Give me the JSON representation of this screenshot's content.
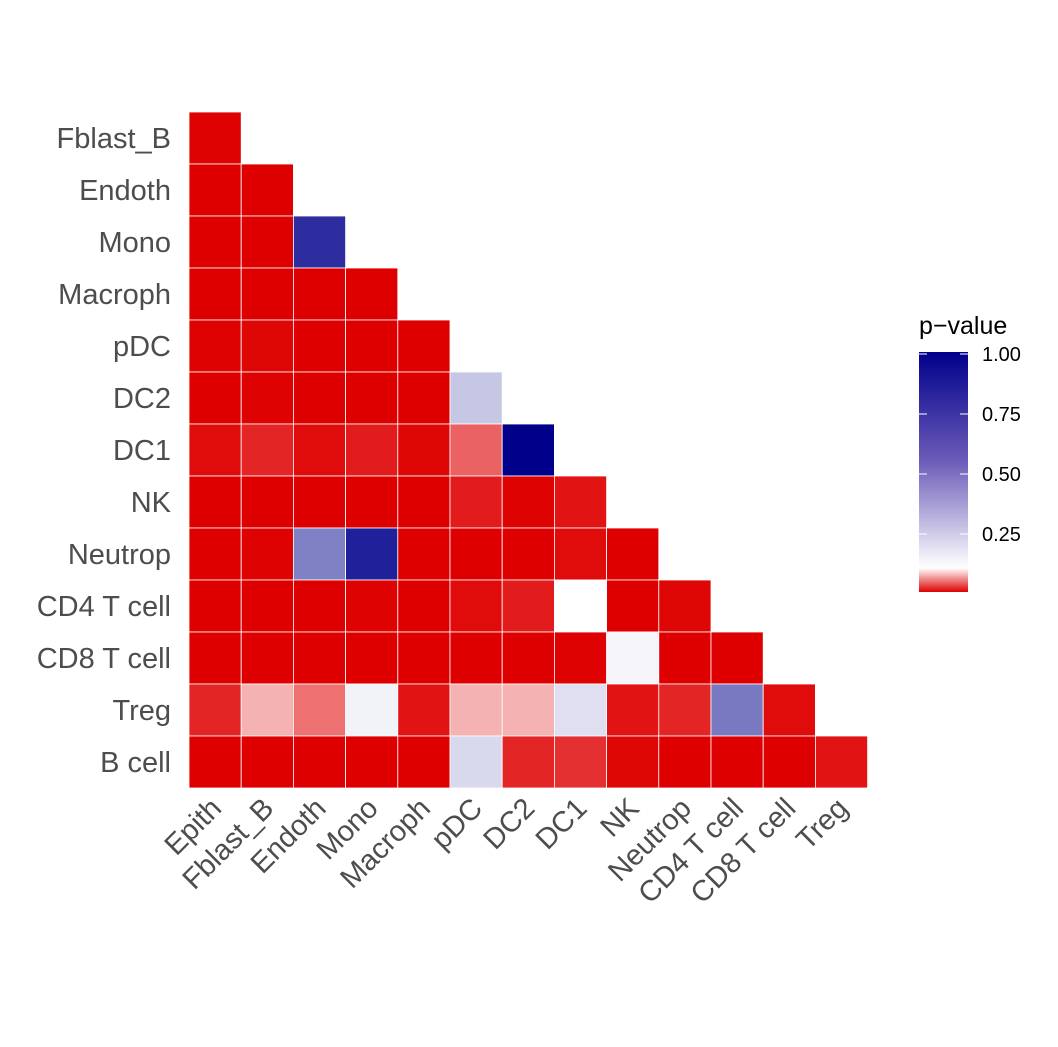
{
  "chart_data": {
    "type": "heatmap",
    "x_categories": [
      "Epith",
      "Fblast_B",
      "Endoth",
      "Mono",
      "Macroph",
      "pDC",
      "DC2",
      "DC1",
      "NK",
      "Neutrop",
      "CD4 T cell",
      "CD8 T cell",
      "Treg"
    ],
    "y_categories": [
      "Fblast_B",
      "Endoth",
      "Mono",
      "Macroph",
      "pDC",
      "DC2",
      "DC1",
      "NK",
      "Neutrop",
      "CD4 T cell",
      "CD8 T cell",
      "Treg",
      "B cell"
    ],
    "values": [
      [
        0.01
      ],
      [
        0.0,
        0.0
      ],
      [
        0.0,
        0.0,
        0.86
      ],
      [
        0.0,
        0.0,
        0.0,
        0.0
      ],
      [
        0.01,
        0.02,
        0.0,
        0.0,
        0.0
      ],
      [
        0.0,
        0.01,
        0.0,
        0.0,
        0.0,
        0.38
      ],
      [
        0.03,
        0.06,
        0.03,
        0.05,
        0.02,
        0.11,
        1.0
      ],
      [
        0.0,
        0.0,
        0.0,
        0.0,
        0.0,
        0.05,
        0.01,
        0.04
      ],
      [
        0.0,
        0.01,
        0.6,
        0.9,
        0.0,
        0.0,
        0.0,
        0.03,
        0.0
      ],
      [
        0.0,
        0.0,
        0.0,
        0.01,
        0.0,
        0.03,
        0.05,
        0.2,
        0.0,
        0.02
      ],
      [
        0.0,
        0.0,
        0.0,
        0.0,
        0.0,
        0.0,
        0.0,
        0.01,
        0.23,
        0.0,
        0.0
      ],
      [
        0.06,
        0.16,
        0.12,
        0.24,
        0.04,
        0.16,
        0.16,
        0.3,
        0.04,
        0.06,
        0.62,
        0.03
      ],
      [
        0.0,
        0.0,
        0.0,
        0.0,
        0.0,
        0.32,
        0.06,
        0.07,
        0.02,
        0.0,
        0.0,
        0.0,
        0.04
      ]
    ],
    "legend": {
      "title": "p−value",
      "ticks": [
        "0.25",
        "0.50",
        "0.75",
        "1.00"
      ],
      "tick_values": [
        0.25,
        0.5,
        0.75,
        1.0
      ],
      "range": [
        0,
        1.0
      ],
      "placement": "right"
    },
    "colors": {
      "low": "#de0000",
      "mid": "#ffffff",
      "high": "#00008b",
      "mid_point": 0.2
    },
    "grid": false
  }
}
